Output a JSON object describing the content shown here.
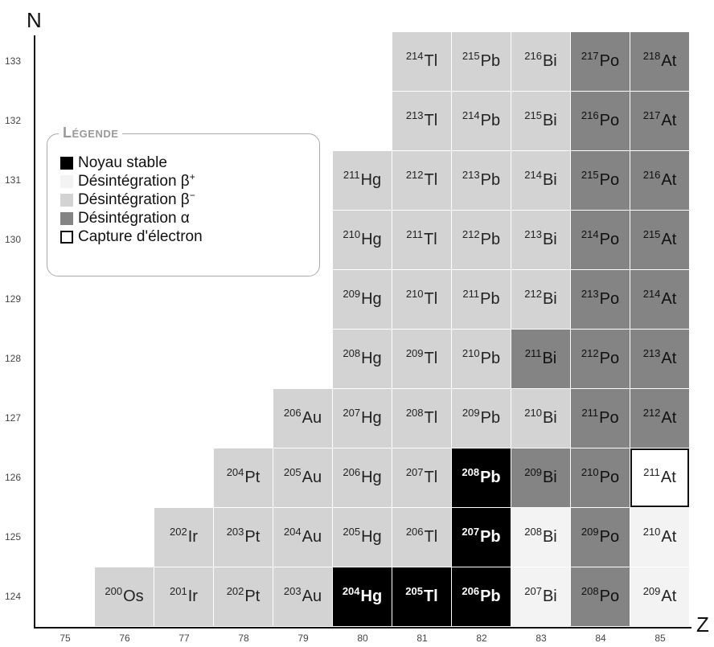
{
  "axis": {
    "y_title": "N",
    "x_title": "Z"
  },
  "legend": {
    "title": "Légende",
    "items": [
      {
        "type": "stable",
        "label": "Noyau stable",
        "sup": ""
      },
      {
        "type": "bplus",
        "label": "Désintégration β",
        "sup": "+"
      },
      {
        "type": "bminus",
        "label": "Désintégration β",
        "sup": "−"
      },
      {
        "type": "alpha",
        "label": "Désintégration α",
        "sup": ""
      },
      {
        "type": "ec",
        "label": "Capture d'électron",
        "sup": ""
      }
    ]
  },
  "chart_data": {
    "type": "table",
    "x_ticks": [
      75,
      76,
      77,
      78,
      79,
      80,
      81,
      82,
      83,
      84,
      85
    ],
    "y_ticks": [
      124,
      125,
      126,
      127,
      128,
      129,
      130,
      131,
      132,
      133
    ],
    "nuclides": [
      {
        "z": 76,
        "n": 124,
        "mass": "200",
        "symbol": "Os",
        "decay": "bminus"
      },
      {
        "z": 77,
        "n": 124,
        "mass": "201",
        "symbol": "Ir",
        "decay": "bminus"
      },
      {
        "z": 78,
        "n": 124,
        "mass": "202",
        "symbol": "Pt",
        "decay": "bminus"
      },
      {
        "z": 79,
        "n": 124,
        "mass": "203",
        "symbol": "Au",
        "decay": "bminus"
      },
      {
        "z": 80,
        "n": 124,
        "mass": "204",
        "symbol": "Hg",
        "decay": "stable"
      },
      {
        "z": 81,
        "n": 124,
        "mass": "205",
        "symbol": "Tl",
        "decay": "stable"
      },
      {
        "z": 82,
        "n": 124,
        "mass": "206",
        "symbol": "Pb",
        "decay": "stable"
      },
      {
        "z": 83,
        "n": 124,
        "mass": "207",
        "symbol": "Bi",
        "decay": "bplus"
      },
      {
        "z": 84,
        "n": 124,
        "mass": "208",
        "symbol": "Po",
        "decay": "alpha"
      },
      {
        "z": 85,
        "n": 124,
        "mass": "209",
        "symbol": "At",
        "decay": "bplus"
      },
      {
        "z": 77,
        "n": 125,
        "mass": "202",
        "symbol": "Ir",
        "decay": "bminus"
      },
      {
        "z": 78,
        "n": 125,
        "mass": "203",
        "symbol": "Pt",
        "decay": "bminus"
      },
      {
        "z": 79,
        "n": 125,
        "mass": "204",
        "symbol": "Au",
        "decay": "bminus"
      },
      {
        "z": 80,
        "n": 125,
        "mass": "205",
        "symbol": "Hg",
        "decay": "bminus"
      },
      {
        "z": 81,
        "n": 125,
        "mass": "206",
        "symbol": "Tl",
        "decay": "bminus"
      },
      {
        "z": 82,
        "n": 125,
        "mass": "207",
        "symbol": "Pb",
        "decay": "stable"
      },
      {
        "z": 83,
        "n": 125,
        "mass": "208",
        "symbol": "Bi",
        "decay": "bplus"
      },
      {
        "z": 84,
        "n": 125,
        "mass": "209",
        "symbol": "Po",
        "decay": "alpha"
      },
      {
        "z": 85,
        "n": 125,
        "mass": "210",
        "symbol": "At",
        "decay": "bplus"
      },
      {
        "z": 78,
        "n": 126,
        "mass": "204",
        "symbol": "Pt",
        "decay": "bminus"
      },
      {
        "z": 79,
        "n": 126,
        "mass": "205",
        "symbol": "Au",
        "decay": "bminus"
      },
      {
        "z": 80,
        "n": 126,
        "mass": "206",
        "symbol": "Hg",
        "decay": "bminus"
      },
      {
        "z": 81,
        "n": 126,
        "mass": "207",
        "symbol": "Tl",
        "decay": "bminus"
      },
      {
        "z": 82,
        "n": 126,
        "mass": "208",
        "symbol": "Pb",
        "decay": "stable"
      },
      {
        "z": 83,
        "n": 126,
        "mass": "209",
        "symbol": "Bi",
        "decay": "alpha"
      },
      {
        "z": 84,
        "n": 126,
        "mass": "210",
        "symbol": "Po",
        "decay": "alpha"
      },
      {
        "z": 85,
        "n": 126,
        "mass": "211",
        "symbol": "At",
        "decay": "ec"
      },
      {
        "z": 79,
        "n": 127,
        "mass": "206",
        "symbol": "Au",
        "decay": "bminus"
      },
      {
        "z": 80,
        "n": 127,
        "mass": "207",
        "symbol": "Hg",
        "decay": "bminus"
      },
      {
        "z": 81,
        "n": 127,
        "mass": "208",
        "symbol": "Tl",
        "decay": "bminus"
      },
      {
        "z": 82,
        "n": 127,
        "mass": "209",
        "symbol": "Pb",
        "decay": "bminus"
      },
      {
        "z": 83,
        "n": 127,
        "mass": "210",
        "symbol": "Bi",
        "decay": "bminus"
      },
      {
        "z": 84,
        "n": 127,
        "mass": "211",
        "symbol": "Po",
        "decay": "alpha"
      },
      {
        "z": 85,
        "n": 127,
        "mass": "212",
        "symbol": "At",
        "decay": "alpha"
      },
      {
        "z": 80,
        "n": 128,
        "mass": "208",
        "symbol": "Hg",
        "decay": "bminus"
      },
      {
        "z": 81,
        "n": 128,
        "mass": "209",
        "symbol": "Tl",
        "decay": "bminus"
      },
      {
        "z": 82,
        "n": 128,
        "mass": "210",
        "symbol": "Pb",
        "decay": "bminus"
      },
      {
        "z": 83,
        "n": 128,
        "mass": "211",
        "symbol": "Bi",
        "decay": "alpha"
      },
      {
        "z": 84,
        "n": 128,
        "mass": "212",
        "symbol": "Po",
        "decay": "alpha"
      },
      {
        "z": 85,
        "n": 128,
        "mass": "213",
        "symbol": "At",
        "decay": "alpha"
      },
      {
        "z": 80,
        "n": 129,
        "mass": "209",
        "symbol": "Hg",
        "decay": "bminus"
      },
      {
        "z": 81,
        "n": 129,
        "mass": "210",
        "symbol": "Tl",
        "decay": "bminus"
      },
      {
        "z": 82,
        "n": 129,
        "mass": "211",
        "symbol": "Pb",
        "decay": "bminus"
      },
      {
        "z": 83,
        "n": 129,
        "mass": "212",
        "symbol": "Bi",
        "decay": "bminus"
      },
      {
        "z": 84,
        "n": 129,
        "mass": "213",
        "symbol": "Po",
        "decay": "alpha"
      },
      {
        "z": 85,
        "n": 129,
        "mass": "214",
        "symbol": "At",
        "decay": "alpha"
      },
      {
        "z": 80,
        "n": 130,
        "mass": "210",
        "symbol": "Hg",
        "decay": "bminus"
      },
      {
        "z": 81,
        "n": 130,
        "mass": "211",
        "symbol": "Tl",
        "decay": "bminus"
      },
      {
        "z": 82,
        "n": 130,
        "mass": "212",
        "symbol": "Pb",
        "decay": "bminus"
      },
      {
        "z": 83,
        "n": 130,
        "mass": "213",
        "symbol": "Bi",
        "decay": "bminus"
      },
      {
        "z": 84,
        "n": 130,
        "mass": "214",
        "symbol": "Po",
        "decay": "alpha"
      },
      {
        "z": 85,
        "n": 130,
        "mass": "215",
        "symbol": "At",
        "decay": "alpha"
      },
      {
        "z": 80,
        "n": 131,
        "mass": "211",
        "symbol": "Hg",
        "decay": "bminus"
      },
      {
        "z": 81,
        "n": 131,
        "mass": "212",
        "symbol": "Tl",
        "decay": "bminus"
      },
      {
        "z": 82,
        "n": 131,
        "mass": "213",
        "symbol": "Pb",
        "decay": "bminus"
      },
      {
        "z": 83,
        "n": 131,
        "mass": "214",
        "symbol": "Bi",
        "decay": "bminus"
      },
      {
        "z": 84,
        "n": 131,
        "mass": "215",
        "symbol": "Po",
        "decay": "alpha"
      },
      {
        "z": 85,
        "n": 131,
        "mass": "216",
        "symbol": "At",
        "decay": "alpha"
      },
      {
        "z": 81,
        "n": 132,
        "mass": "213",
        "symbol": "Tl",
        "decay": "bminus"
      },
      {
        "z": 82,
        "n": 132,
        "mass": "214",
        "symbol": "Pb",
        "decay": "bminus"
      },
      {
        "z": 83,
        "n": 132,
        "mass": "215",
        "symbol": "Bi",
        "decay": "bminus"
      },
      {
        "z": 84,
        "n": 132,
        "mass": "216",
        "symbol": "Po",
        "decay": "alpha"
      },
      {
        "z": 85,
        "n": 132,
        "mass": "217",
        "symbol": "At",
        "decay": "alpha"
      },
      {
        "z": 81,
        "n": 133,
        "mass": "214",
        "symbol": "Tl",
        "decay": "bminus"
      },
      {
        "z": 82,
        "n": 133,
        "mass": "215",
        "symbol": "Pb",
        "decay": "bminus"
      },
      {
        "z": 83,
        "n": 133,
        "mass": "216",
        "symbol": "Bi",
        "decay": "bminus"
      },
      {
        "z": 84,
        "n": 133,
        "mass": "217",
        "symbol": "Po",
        "decay": "alpha"
      },
      {
        "z": 85,
        "n": 133,
        "mass": "218",
        "symbol": "At",
        "decay": "alpha"
      }
    ]
  }
}
